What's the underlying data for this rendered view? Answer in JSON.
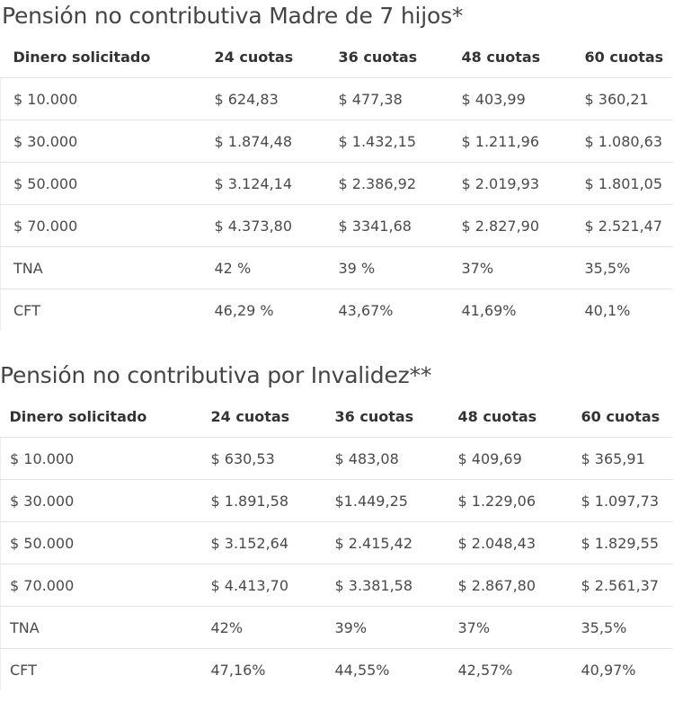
{
  "tables": [
    {
      "title": "Pensión no contributiva Madre de 7 hijos*",
      "headers": [
        "Dinero solicitado",
        "24 cuotas",
        "36 cuotas",
        "48 cuotas",
        "60 cuotas"
      ],
      "rows": [
        [
          "$ 10.000",
          "$ 624,83",
          "$ 477,38",
          "$ 403,99",
          "$ 360,21"
        ],
        [
          "$ 30.000",
          "$ 1.874,48",
          "$ 1.432,15",
          "$ 1.211,96",
          "$ 1.080,63"
        ],
        [
          "$ 50.000",
          "$ 3.124,14",
          "$ 2.386,92",
          "$ 2.019,93",
          "$ 1.801,05"
        ],
        [
          "$ 70.000",
          "$ 4.373,80",
          "$ 3341,68",
          "$ 2.827,90",
          "$ 2.521,47"
        ],
        [
          "TNA",
          "42 %",
          "39 %",
          "37%",
          "35,5%"
        ],
        [
          "CFT",
          "46,29 %",
          "43,67%",
          "41,69%",
          "40,1%"
        ]
      ]
    },
    {
      "title": "Pensión no contributiva por Invalidez**",
      "headers": [
        "Dinero solicitado",
        "24 cuotas",
        "36 cuotas",
        "48 cuotas",
        "60 cuotas"
      ],
      "rows": [
        [
          "$ 10.000",
          "$ 630,53",
          "$ 483,08",
          "$ 409,69",
          "$ 365,91"
        ],
        [
          "$ 30.000",
          "$ 1.891,58",
          "$1.449,25",
          "$ 1.229,06",
          "$ 1.097,73"
        ],
        [
          "$ 50.000",
          "$ 3.152,64",
          "$ 2.415,42",
          "$ 2.048,43",
          "$ 1.829,55"
        ],
        [
          "$ 70.000",
          "$ 4.413,70",
          "$ 3.381,58",
          "$ 2.867,80",
          "$ 2.561,37"
        ],
        [
          "TNA",
          "42%",
          "39%",
          "37%",
          "35,5%"
        ],
        [
          "CFT",
          "47,16%",
          "44,55%",
          "42,57%",
          "40,97%"
        ]
      ]
    }
  ]
}
